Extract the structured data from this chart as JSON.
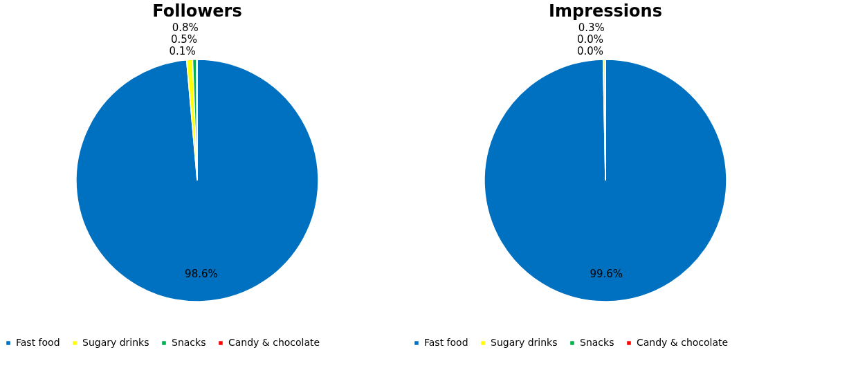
{
  "chart_data": [
    {
      "type": "pie",
      "title": "Followers",
      "categories": [
        "Fast food",
        "Sugary drinks",
        "Snacks",
        "Candy & chocolate"
      ],
      "values": [
        98.6,
        0.8,
        0.5,
        0.1
      ],
      "value_labels": [
        "98.6%",
        "0.8%",
        "0.5%",
        "0.1%"
      ],
      "colors": [
        "#0070c0",
        "#ffff00",
        "#00b050",
        "#ff0000"
      ],
      "legend": "bottom"
    },
    {
      "type": "pie",
      "title": "Impressions",
      "categories": [
        "Fast food",
        "Sugary drinks",
        "Snacks",
        "Candy & chocolate"
      ],
      "values": [
        99.6,
        0.3,
        0.0,
        0.0
      ],
      "value_labels": [
        "99.6%",
        "0.3%",
        "0.0%",
        "0.0%"
      ],
      "colors": [
        "#0070c0",
        "#ffff00",
        "#00b050",
        "#ff0000"
      ],
      "legend": "bottom"
    }
  ]
}
